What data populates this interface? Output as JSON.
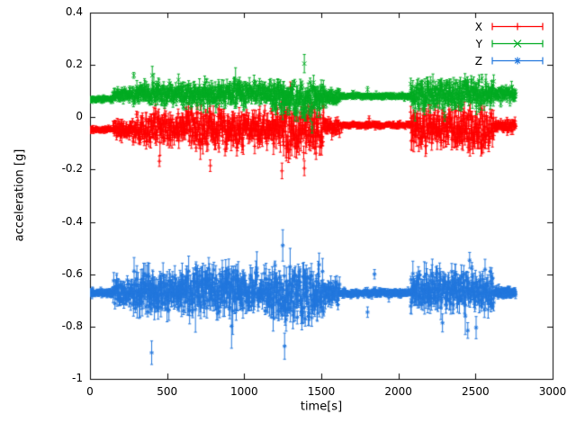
{
  "chart_data": {
    "type": "scatter",
    "style": "errorbars",
    "title": "",
    "xlabel": "time[s]",
    "ylabel": "acceleration [g]",
    "xlim": [
      0,
      3000
    ],
    "ylim": [
      -1,
      0.4
    ],
    "grid": false,
    "legend_position": "top-right",
    "x_ticks": [
      {
        "value": 0,
        "label": "0"
      },
      {
        "value": 500,
        "label": "500"
      },
      {
        "value": 1000,
        "label": "1000"
      },
      {
        "value": 1500,
        "label": "1500"
      },
      {
        "value": 2000,
        "label": "2000"
      },
      {
        "value": 2500,
        "label": "2500"
      },
      {
        "value": 3000,
        "label": "3000"
      }
    ],
    "y_ticks": [
      {
        "value": 0.4,
        "label": "0.4"
      },
      {
        "value": 0.2,
        "label": "0.2"
      },
      {
        "value": 0,
        "label": "0"
      },
      {
        "value": -0.2,
        "label": "-0.2"
      },
      {
        "value": -0.4,
        "label": "-0.4"
      },
      {
        "value": -0.6,
        "label": "-0.6"
      },
      {
        "value": -0.8,
        "label": "-0.8"
      },
      {
        "value": -1,
        "label": "-1"
      }
    ],
    "t_range": [
      0,
      2760
    ],
    "sample_step": 2,
    "border_color": "#000000",
    "series": [
      {
        "name": "X",
        "color": "#ff0000",
        "marker": "plus",
        "segments": [
          [
            0,
            150,
            -0.048,
            0.006,
            0.008
          ],
          [
            150,
            280,
            -0.045,
            0.02,
            0.018
          ],
          [
            280,
            620,
            -0.042,
            0.035,
            0.028
          ],
          [
            620,
            1000,
            -0.048,
            0.048,
            0.035
          ],
          [
            1000,
            1180,
            -0.042,
            0.04,
            0.03
          ],
          [
            1180,
            1520,
            -0.052,
            0.06,
            0.04
          ],
          [
            1520,
            1620,
            -0.035,
            0.018,
            0.016
          ],
          [
            1620,
            2080,
            -0.03,
            0.006,
            0.008
          ],
          [
            2080,
            2400,
            -0.042,
            0.045,
            0.034
          ],
          [
            2400,
            2620,
            -0.046,
            0.05,
            0.035
          ],
          [
            2620,
            2760,
            -0.032,
            0.014,
            0.014
          ]
        ],
        "outliers": [
          [
            450,
            -0.168,
            0.02
          ],
          [
            780,
            -0.185,
            0.022
          ],
          [
            1245,
            -0.205,
            0.03
          ],
          [
            1300,
            0.115,
            0.02
          ],
          [
            1390,
            -0.195,
            0.028
          ],
          [
            1810,
            -0.005,
            0.01
          ]
        ]
      },
      {
        "name": "Y",
        "color": "#00ab22",
        "marker": "cross",
        "segments": [
          [
            0,
            150,
            0.068,
            0.006,
            0.008
          ],
          [
            150,
            280,
            0.085,
            0.015,
            0.014
          ],
          [
            280,
            620,
            0.09,
            0.025,
            0.02
          ],
          [
            620,
            1000,
            0.09,
            0.03,
            0.024
          ],
          [
            1000,
            1180,
            0.095,
            0.025,
            0.02
          ],
          [
            1180,
            1520,
            0.072,
            0.04,
            0.03
          ],
          [
            1520,
            1620,
            0.08,
            0.015,
            0.014
          ],
          [
            1620,
            2080,
            0.08,
            0.006,
            0.007
          ],
          [
            2080,
            2400,
            0.085,
            0.035,
            0.025
          ],
          [
            2400,
            2620,
            0.09,
            0.035,
            0.025
          ],
          [
            2620,
            2760,
            0.09,
            0.014,
            0.013
          ]
        ],
        "outliers": [
          [
            1390,
            0.205,
            0.035
          ],
          [
            1430,
            0.005,
            0.02
          ],
          [
            1800,
            0.105,
            0.012
          ],
          [
            2300,
            0.005,
            0.02
          ]
        ]
      },
      {
        "name": "Z",
        "color": "#2277dd",
        "marker": "asterisk",
        "segments": [
          [
            0,
            150,
            -0.672,
            0.008,
            0.01
          ],
          [
            150,
            280,
            -0.67,
            0.03,
            0.028
          ],
          [
            280,
            620,
            -0.668,
            0.05,
            0.045
          ],
          [
            620,
            1000,
            -0.66,
            0.055,
            0.05
          ],
          [
            1000,
            1180,
            -0.67,
            0.05,
            0.04
          ],
          [
            1180,
            1520,
            -0.678,
            0.07,
            0.05
          ],
          [
            1520,
            1620,
            -0.67,
            0.028,
            0.024
          ],
          [
            1620,
            2080,
            -0.672,
            0.008,
            0.01
          ],
          [
            2080,
            2400,
            -0.66,
            0.045,
            0.04
          ],
          [
            2400,
            2620,
            -0.664,
            0.05,
            0.04
          ],
          [
            2620,
            2760,
            -0.67,
            0.012,
            0.012
          ]
        ],
        "outliers": [
          [
            400,
            -0.9,
            0.045
          ],
          [
            1250,
            -0.49,
            0.06
          ],
          [
            1262,
            -0.875,
            0.05
          ],
          [
            1800,
            -0.745,
            0.02
          ],
          [
            1845,
            -0.6,
            0.018
          ],
          [
            2450,
            -0.815,
            0.03
          ]
        ]
      }
    ]
  }
}
